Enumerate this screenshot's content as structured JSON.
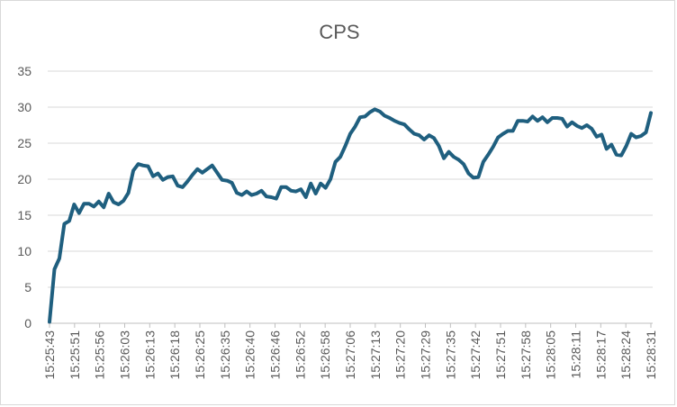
{
  "chart_data": {
    "type": "line",
    "title": "CPS",
    "xlabel": "",
    "ylabel": "",
    "ylim": [
      0,
      35
    ],
    "yticks": [
      0,
      5,
      10,
      15,
      20,
      25,
      30,
      35
    ],
    "grid": true,
    "legend": "none",
    "x_tick_labels": [
      "15:25:43",
      "15:25:51",
      "15:25:56",
      "15:26:03",
      "15:26:13",
      "15:26:18",
      "15:26:25",
      "15:26:35",
      "15:26:40",
      "15:26:46",
      "15:26:52",
      "15:26:58",
      "15:27:06",
      "15:27:13",
      "15:27:20",
      "15:27:29",
      "15:27:35",
      "15:27:42",
      "15:27:51",
      "15:27:58",
      "15:28:05",
      "15:28:11",
      "15:28:17",
      "15:28:24",
      "15:28:31"
    ],
    "series": [
      {
        "color": "#1f5f7f",
        "values": [
          0.2,
          7.5,
          9,
          13.8,
          14.2,
          16.5,
          15.3,
          16.6,
          16.6,
          16.2,
          16.9,
          16.1,
          18,
          16.8,
          16.5,
          17,
          18.1,
          21.2,
          22.1,
          21.9,
          21.8,
          20.4,
          20.8,
          19.9,
          20.3,
          20.4,
          19.1,
          18.9,
          19.7,
          20.6,
          21.4,
          20.9,
          21.4,
          21.9,
          20.9,
          19.9,
          19.8,
          19.5,
          18.1,
          17.8,
          18.3,
          17.8,
          18,
          18.4,
          17.6,
          17.5,
          17.3,
          18.9,
          18.9,
          18.4,
          18.3,
          18.6,
          17.5,
          19.4,
          18,
          19.4,
          18.8,
          20,
          22.4,
          23.1,
          24.6,
          26.3,
          27.3,
          28.6,
          28.7,
          29.3,
          29.7,
          29.4,
          28.8,
          28.5,
          28.1,
          27.8,
          27.6,
          26.9,
          26.3,
          26.1,
          25.5,
          26.1,
          25.7,
          24.6,
          22.9,
          23.8,
          23.1,
          22.7,
          22.1,
          20.8,
          20.2,
          20.3,
          22.4,
          23.4,
          24.5,
          25.8,
          26.3,
          26.7,
          26.7,
          28.1,
          28.1,
          28,
          28.7,
          28.1,
          28.6,
          27.9,
          28.5,
          28.5,
          28.4,
          27.3,
          27.9,
          27.4,
          27.1,
          27.5,
          27,
          25.9,
          26.2,
          24.2,
          24.8,
          23.4,
          23.3,
          24.6,
          26.3,
          25.8,
          26,
          26.5,
          29.2
        ]
      }
    ]
  }
}
